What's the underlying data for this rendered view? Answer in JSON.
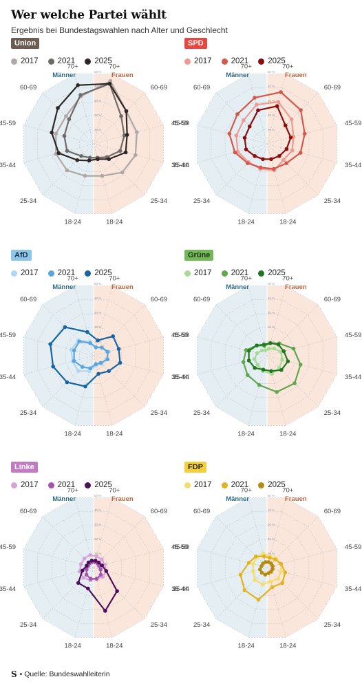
{
  "header": {
    "title": "Wer welche Partei wählt",
    "subtitle": "Ergebnis bei Bundestagswahlen nach Alter und Geschlecht"
  },
  "footer": {
    "logo": "S",
    "source": "• Quelle: Bundeswahlleiterin"
  },
  "chart_data": [
    {
      "type": "radar",
      "party": "Union",
      "badge_color": "#6b5d52",
      "badge_text_color": "#ffffff",
      "years": [
        "2017",
        "2021",
        "2025"
      ],
      "colors": [
        "#ada8a5",
        "#6e6a67",
        "#2d2624"
      ],
      "groups": [
        "Männer",
        "Frauen"
      ],
      "age_labels": [
        "70+",
        "60-69",
        "45-59",
        "35-44",
        "25-34",
        "18-24",
        "18-24",
        "25-34",
        "35-44",
        "45-59",
        "60-69",
        "70+"
      ],
      "rlim": [
        0,
        50
      ],
      "rticks": [
        "10 %",
        "20 %",
        "30 %",
        "40 %",
        "50 %"
      ],
      "series": [
        {
          "year": "2017",
          "men": [
            34,
            27,
            27,
            27,
            26,
            23
          ],
          "women": [
            45,
            32,
            31,
            30,
            28,
            23
          ]
        },
        {
          "year": "2021",
          "men": [
            35,
            24,
            21,
            19,
            12,
            10
          ],
          "women": [
            43,
            27,
            22,
            19,
            13,
            10
          ]
        },
        {
          "year": "2025",
          "men": [
            42,
            35,
            30,
            25,
            16,
            12
          ],
          "women": [
            43,
            32,
            24,
            23,
            15,
            11
          ]
        }
      ]
    },
    {
      "type": "radar",
      "party": "SPD",
      "badge_color": "#e8473f",
      "badge_text_color": "#ffffff",
      "years": [
        "2017",
        "2021",
        "2025"
      ],
      "colors": [
        "#ee9a90",
        "#d4574b",
        "#8b0d0d"
      ],
      "groups": [
        "Männer",
        "Frauen"
      ],
      "age_labels": [
        "70+",
        "60-69",
        "45-59",
        "35-44",
        "25-34",
        "18-24",
        "18-24",
        "25-34",
        "35-44",
        "45-59",
        "60-69",
        "70+"
      ],
      "rlim": [
        0,
        50
      ],
      "rticks": [
        "10 %",
        "20 %",
        "30 %",
        "40 %",
        "50 %"
      ],
      "series": [
        {
          "year": "2017",
          "men": [
            28,
            23,
            22,
            21,
            18,
            18
          ],
          "women": [
            30,
            24,
            19,
            18,
            16,
            19
          ]
        },
        {
          "year": "2021",
          "men": [
            33,
            29,
            27,
            23,
            19,
            17
          ],
          "women": [
            37,
            33,
            27,
            24,
            19,
            18
          ]
        },
        {
          "year": "2025",
          "men": [
            24,
            17,
            16,
            15,
            12,
            11
          ],
          "women": [
            27,
            18,
            17,
            14,
            12,
            11
          ]
        }
      ]
    },
    {
      "type": "radar",
      "party": "AfD",
      "badge_color": "#8ec6ea",
      "badge_text_color": "#1b3446",
      "years": [
        "2017",
        "2021",
        "2025"
      ],
      "colors": [
        "#aed6f1",
        "#5aa4df",
        "#1565a6"
      ],
      "groups": [
        "Männer",
        "Frauen"
      ],
      "age_labels": [
        "70+",
        "60-69",
        "45-59",
        "35-44",
        "25-34",
        "18-24",
        "18-24",
        "25-34",
        "35-44",
        "45-59",
        "60-69",
        "70+"
      ],
      "rlim": [
        0,
        50
      ],
      "rticks": [
        "10 %",
        "20 %",
        "30 %",
        "40 %",
        "50 %"
      ],
      "series": [
        {
          "year": "2017",
          "men": [
            10,
            15,
            16,
            15,
            15,
            11
          ],
          "women": [
            6,
            8,
            11,
            9,
            8,
            7
          ]
        },
        {
          "year": "2021",
          "men": [
            9,
            14,
            14,
            14,
            11,
            9
          ],
          "women": [
            6,
            8,
            10,
            10,
            7,
            6
          ]
        },
        {
          "year": "2025",
          "men": [
            17,
            28,
            31,
            29,
            26,
            22
          ],
          "women": [
            11,
            19,
            18,
            19,
            15,
            13
          ]
        }
      ]
    },
    {
      "type": "radar",
      "party": "Grüne",
      "badge_color": "#74b85a",
      "badge_text_color": "#1b3515",
      "years": [
        "2017",
        "2021",
        "2025"
      ],
      "colors": [
        "#a9d996",
        "#5fa64c",
        "#1f7a1f"
      ],
      "groups": [
        "Männer",
        "Frauen"
      ],
      "age_labels": [
        "70+",
        "60-69",
        "45-59",
        "35-44",
        "25-34",
        "18-24",
        "18-24",
        "25-34",
        "35-44",
        "45-59",
        "60-69",
        "70+"
      ],
      "rlim": [
        0,
        50
      ],
      "rticks": [
        "10 %",
        "20 %",
        "30 %",
        "40 %",
        "50 %"
      ],
      "series": [
        {
          "year": "2017",
          "men": [
            4,
            5,
            7,
            9,
            9,
            11
          ],
          "women": [
            5,
            7,
            10,
            11,
            12,
            13
          ]
        },
        {
          "year": "2021",
          "men": [
            7,
            10,
            15,
            17,
            19,
            21
          ],
          "women": [
            9,
            12,
            19,
            24,
            27,
            26
          ]
        },
        {
          "year": "2025",
          "men": [
            8,
            10,
            13,
            13,
            12,
            10
          ],
          "women": [
            9,
            11,
            12,
            15,
            14,
            11
          ]
        }
      ]
    },
    {
      "type": "radar",
      "party": "Linke",
      "badge_color": "#c27ac3",
      "badge_text_color": "#ffffff",
      "years": [
        "2017",
        "2021",
        "2025"
      ],
      "colors": [
        "#d7a3d7",
        "#a653b0",
        "#4f0f5a"
      ],
      "groups": [
        "Männer",
        "Frauen"
      ],
      "age_labels": [
        "70+",
        "60-69",
        "45-59",
        "35-44",
        "25-34",
        "18-24",
        "18-24",
        "25-34",
        "35-44",
        "45-59",
        "60-69",
        "70+"
      ],
      "rlim": [
        0,
        50
      ],
      "rticks": [
        "10 %",
        "20 %",
        "30 %",
        "40 %",
        "50 %"
      ],
      "series": [
        {
          "year": "2017",
          "men": [
            9,
            9,
            9,
            10,
            10,
            9
          ],
          "women": [
            8,
            8,
            8,
            9,
            9,
            8
          ]
        },
        {
          "year": "2021",
          "men": [
            4,
            4,
            4,
            5,
            7,
            8
          ],
          "women": [
            4,
            4,
            4,
            5,
            7,
            8
          ]
        },
        {
          "year": "2025",
          "men": [
            5,
            5,
            5,
            8,
            15,
            15
          ],
          "women": [
            5,
            5,
            6,
            9,
            23,
            31
          ]
        }
      ]
    },
    {
      "type": "radar",
      "party": "FDP",
      "badge_color": "#f2d13b",
      "badge_text_color": "#2a2200",
      "years": [
        "2017",
        "2021",
        "2025"
      ],
      "colors": [
        "#f3dd6b",
        "#e2b221",
        "#b58a0d"
      ],
      "groups": [
        "Männer",
        "Frauen"
      ],
      "age_labels": [
        "70+",
        "60-69",
        "45-59",
        "35-44",
        "25-34",
        "18-24",
        "18-24",
        "25-34",
        "35-44",
        "45-59",
        "60-69",
        "70+"
      ],
      "rlim": [
        0,
        50
      ],
      "rticks": [
        "10 %",
        "20 %",
        "30 %",
        "40 %",
        "50 %"
      ],
      "series": [
        {
          "year": "2017",
          "men": [
            10,
            10,
            10,
            10,
            12,
            12
          ],
          "women": [
            8,
            9,
            10,
            10,
            11,
            10
          ]
        },
        {
          "year": "2021",
          "men": [
            8,
            11,
            13,
            19,
            22,
            23
          ],
          "women": [
            7,
            8,
            10,
            13,
            15,
            14
          ]
        },
        {
          "year": "2025",
          "men": [
            4,
            4,
            4,
            5,
            5,
            5
          ],
          "women": [
            4,
            4,
            4,
            4,
            4,
            4
          ]
        }
      ]
    }
  ]
}
